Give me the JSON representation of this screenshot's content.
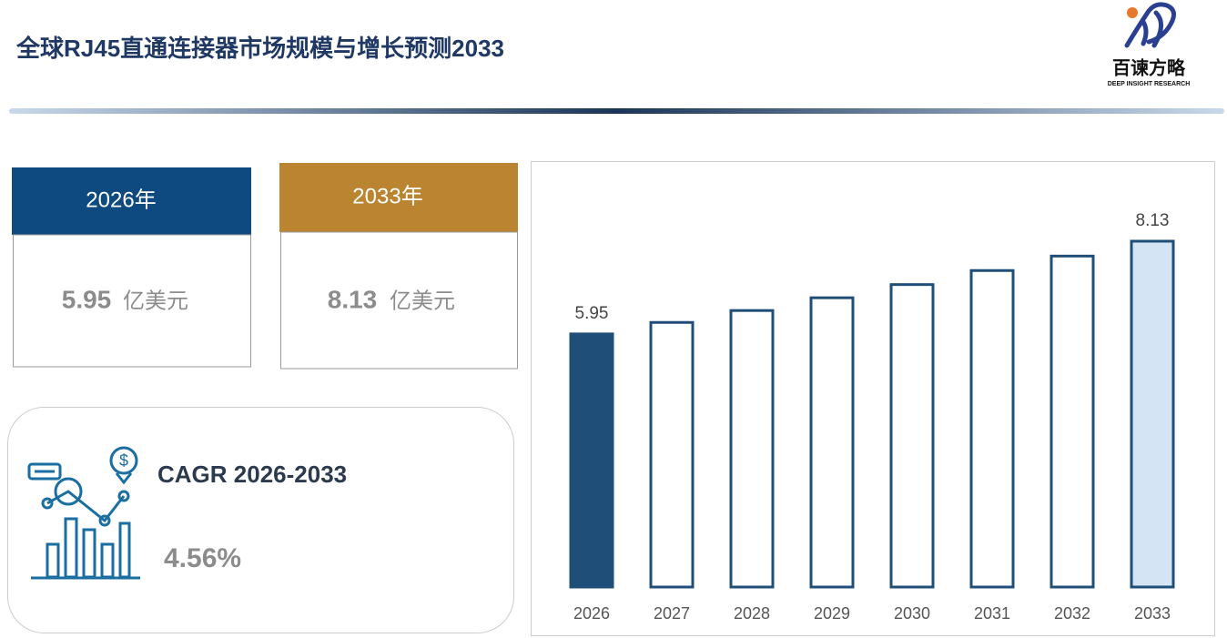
{
  "header": {
    "title": "全球RJ45直通连接器市场规模与增长预测2033",
    "logo_name": "百谏方略",
    "logo_tagline": "DEEP INSIGHT RESEARCH"
  },
  "cards": [
    {
      "year": "2026年",
      "value": "5.95",
      "unit": "亿美元"
    },
    {
      "year": "2033年",
      "value": "8.13",
      "unit": "亿美元"
    }
  ],
  "cagr": {
    "label": "CAGR 2026-2033",
    "value": "4.56%"
  },
  "chart_data": {
    "type": "bar",
    "categories": [
      "2026",
      "2027",
      "2028",
      "2029",
      "2030",
      "2031",
      "2032",
      "2033"
    ],
    "values": [
      5.95,
      6.22,
      6.5,
      6.8,
      7.11,
      7.44,
      7.78,
      8.13
    ],
    "value_labels": [
      "5.95",
      null,
      null,
      null,
      null,
      null,
      null,
      "8.13"
    ],
    "color": "#1f4e79",
    "fills": [
      "#1f4e79",
      "#ffffff",
      "#ffffff",
      "#ffffff",
      "#ffffff",
      "#ffffff",
      "#ffffff",
      "#d4e4f5"
    ]
  }
}
